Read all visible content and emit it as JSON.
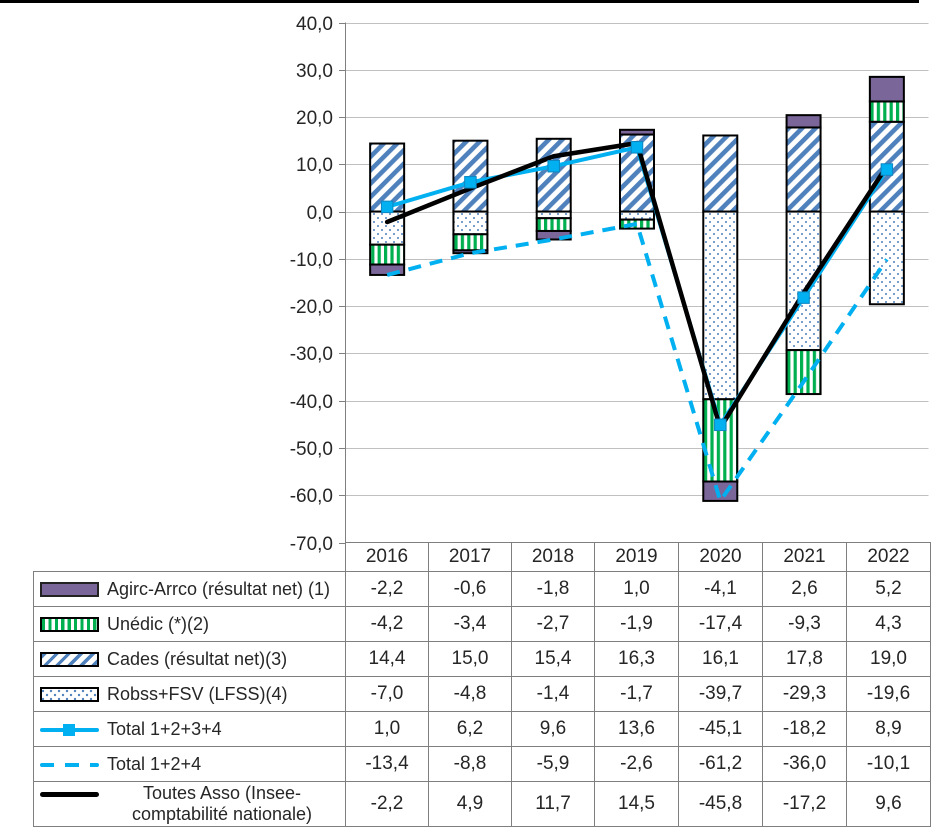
{
  "chart_data": {
    "type": "combo-stacked-bar-line",
    "categories": [
      "2016",
      "2017",
      "2018",
      "2019",
      "2020",
      "2021",
      "2022"
    ],
    "bar_series": [
      {
        "id": "agirc",
        "name": "Agirc-Arrco (résultat net) (1)",
        "pattern": "solid",
        "color": "#7b669a",
        "values": [
          -2.2,
          -0.6,
          -1.8,
          1.0,
          -4.1,
          2.6,
          5.2
        ]
      },
      {
        "id": "unedic",
        "name": "Unédic (*)(2)",
        "pattern": "vertical-stripes",
        "color": "#00B050",
        "values": [
          -4.2,
          -3.4,
          -2.7,
          -1.9,
          -17.4,
          -9.3,
          4.3
        ]
      },
      {
        "id": "cades",
        "name": "Cades (résultat net)(3)",
        "pattern": "diagonal-hatch",
        "color": "#4F81BD",
        "values": [
          14.4,
          15.0,
          15.4,
          16.3,
          16.1,
          17.8,
          19.0
        ]
      },
      {
        "id": "robss",
        "name": "Robss+FSV (LFSS)(4)",
        "pattern": "dots",
        "color": "#4F81BD",
        "values": [
          -7.0,
          -4.8,
          -1.4,
          -1.7,
          -39.7,
          -29.3,
          -19.6
        ]
      }
    ],
    "positive_stack_order": [
      "cades",
      "unedic",
      "agirc"
    ],
    "negative_stack_order": [
      "robss",
      "unedic",
      "agirc"
    ],
    "line_series": [
      {
        "id": "total1234",
        "name": "Total 1+2+3+4",
        "style": "solid",
        "marker": "square",
        "color": "#00B0F0",
        "width": 4,
        "values": [
          1.0,
          6.2,
          9.6,
          13.6,
          -45.1,
          -18.2,
          8.9
        ]
      },
      {
        "id": "total124",
        "name": "Total 1+2+4",
        "style": "dashed",
        "marker": "none",
        "color": "#00B0F0",
        "width": 4,
        "values": [
          -13.4,
          -8.8,
          -5.9,
          -2.6,
          -61.2,
          -36.0,
          -10.1
        ]
      },
      {
        "id": "toutes",
        "name": "Toutes Asso (Insee-comptabilité nationale)",
        "style": "solid",
        "marker": "none",
        "color": "#000000",
        "width": 4.5,
        "values": [
          -2.2,
          4.9,
          11.7,
          14.5,
          -45.8,
          -17.2,
          9.6
        ]
      }
    ],
    "ylim": [
      -70,
      40
    ],
    "y_tick_step": 10,
    "y_ticks": [
      "40,0",
      "30,0",
      "20,0",
      "10,0",
      "0,0",
      "-10,0",
      "-20,0",
      "-30,0",
      "-40,0",
      "-50,0",
      "-60,0",
      "-70,0"
    ],
    "grid": true,
    "legend_position": "table-left"
  },
  "table": {
    "rows": [
      {
        "label": "Agirc-Arrco (résultat net) (1)",
        "values": [
          "-2,2",
          "-0,6",
          "-1,8",
          "1,0",
          "-4,1",
          "2,6",
          "5,2"
        ]
      },
      {
        "label": "Unédic (*)(2)",
        "values": [
          "-4,2",
          "-3,4",
          "-2,7",
          "-1,9",
          "-17,4",
          "-9,3",
          "4,3"
        ]
      },
      {
        "label": "Cades (résultat net)(3)",
        "values": [
          "14,4",
          "15,0",
          "15,4",
          "16,3",
          "16,1",
          "17,8",
          "19,0"
        ]
      },
      {
        "label": "Robss+FSV (LFSS)(4)",
        "values": [
          "-7,0",
          "-4,8",
          "-1,4",
          "-1,7",
          "-39,7",
          "-29,3",
          "-19,6"
        ]
      },
      {
        "label": "Total 1+2+3+4",
        "values": [
          "1,0",
          "6,2",
          "9,6",
          "13,6",
          "-45,1",
          "-18,2",
          "8,9"
        ]
      },
      {
        "label": "Total 1+2+4",
        "values": [
          "-13,4",
          "-8,8",
          "-5,9",
          "-2,6",
          "-61,2",
          "-36,0",
          "-10,1"
        ]
      },
      {
        "label": "Toutes Asso (Insee-\ncomptabilité nationale)",
        "values": [
          "-2,2",
          "4,9",
          "11,7",
          "14,5",
          "-45,8",
          "-17,2",
          "9,6"
        ]
      }
    ]
  },
  "colors": {
    "accent_cyan": "#00B0F0",
    "marker_border": "#0d86c2",
    "purple": "#7b669a",
    "green": "#00B050",
    "blue": "#4F81BD",
    "gridline": "#C0C0C0",
    "axis": "#808080",
    "table_border": "#7F7F7F",
    "text": "#262626",
    "frame": "#000000"
  }
}
